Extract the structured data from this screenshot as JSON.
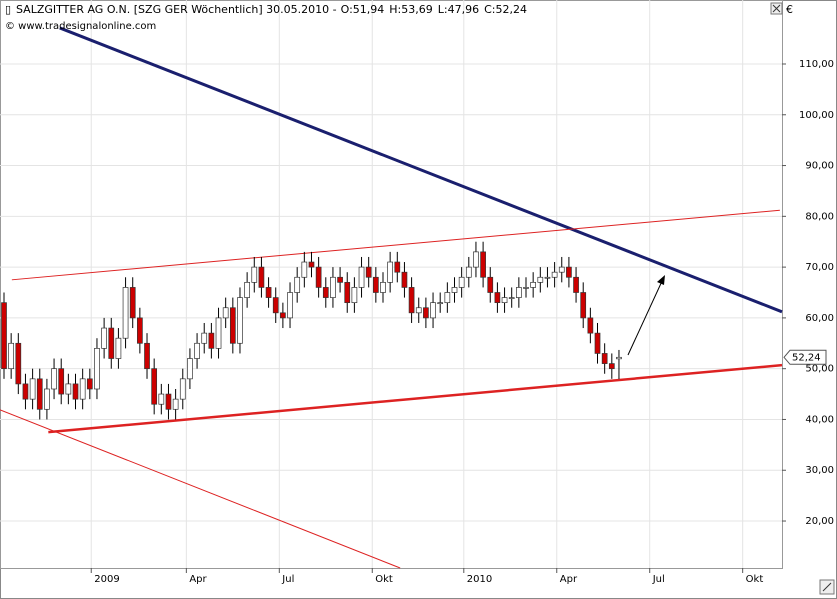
{
  "chart_data": {
    "type": "candlestick",
    "title": "SALZGITTER AG O.N. [SZG GER  Wöchentlich] 30.05.2010 -",
    "quote": [
      {
        "text": "O:51,94",
        "color": "#009900"
      },
      {
        "text": "H:53,69",
        "color": "#0000cc"
      },
      {
        "text": "L:47,96",
        "color": "#0000cc"
      },
      {
        "text": "C:52,24",
        "color": "#009900"
      }
    ],
    "source": "© www.tradesignalonline.com",
    "currency": "€",
    "x": [
      0,
      1,
      2,
      3,
      4,
      5,
      6,
      7,
      8,
      9,
      10,
      11,
      12,
      13,
      14,
      15,
      16,
      17,
      18,
      19,
      20,
      21,
      22,
      23,
      24,
      25,
      26,
      27,
      28,
      29,
      30,
      31,
      32,
      33,
      34,
      35,
      36,
      37,
      38,
      39,
      40,
      41,
      42,
      43,
      44,
      45,
      46,
      47,
      48,
      49,
      50,
      51,
      52,
      53,
      54,
      55,
      56,
      57,
      58,
      59,
      60,
      61,
      62,
      63,
      64,
      65,
      66,
      67,
      68,
      69,
      70,
      71,
      72,
      73,
      74,
      75,
      76,
      77,
      78,
      79,
      80,
      81,
      82,
      83,
      84,
      85,
      86
    ],
    "open": [
      63,
      50,
      55,
      47,
      44,
      48,
      42,
      46,
      50,
      45,
      47,
      44,
      48,
      46,
      54,
      58,
      52,
      56,
      66,
      60,
      55,
      50,
      43,
      45,
      42,
      44,
      48,
      52,
      55,
      57,
      54,
      60,
      62,
      55,
      64,
      67,
      70,
      66,
      64,
      61,
      60,
      65,
      68,
      71,
      70,
      66,
      64,
      68,
      67,
      63,
      66,
      70,
      68,
      65,
      67,
      71,
      69,
      66,
      61,
      62,
      60,
      63,
      63,
      65,
      66,
      68,
      70,
      73,
      68,
      65,
      63,
      64,
      64,
      66,
      66,
      67,
      68,
      68,
      69,
      70,
      68,
      65,
      60,
      57,
      53,
      51,
      51.94
    ],
    "high": [
      65,
      57,
      57,
      49,
      50,
      50,
      48,
      52,
      52,
      49,
      49,
      50,
      50,
      56,
      60,
      60,
      58,
      68,
      68,
      62,
      57,
      52,
      47,
      47,
      46,
      50,
      54,
      57,
      59,
      59,
      62,
      64,
      64,
      66,
      69,
      72,
      72,
      68,
      66,
      63,
      67,
      70,
      73,
      73,
      72,
      68,
      70,
      70,
      69,
      68,
      72,
      72,
      70,
      69,
      73,
      73,
      71,
      68,
      64,
      64,
      65,
      65,
      67,
      68,
      70,
      72,
      75,
      75,
      70,
      67,
      66,
      66,
      68,
      68,
      69,
      70,
      70,
      71,
      72,
      72,
      70,
      67,
      62,
      59,
      55,
      53,
      53.69
    ],
    "low": [
      48,
      48,
      45,
      42,
      42,
      40,
      40,
      44,
      43,
      43,
      42,
      42,
      44,
      44,
      52,
      50,
      50,
      54,
      58,
      53,
      48,
      41,
      41,
      40,
      40,
      42,
      46,
      50,
      53,
      52,
      52,
      58,
      53,
      53,
      62,
      65,
      64,
      62,
      59,
      58,
      58,
      63,
      66,
      68,
      64,
      62,
      62,
      65,
      61,
      61,
      64,
      66,
      63,
      63,
      65,
      67,
      64,
      59,
      59,
      58,
      58,
      61,
      61,
      63,
      64,
      66,
      68,
      66,
      63,
      61,
      61,
      62,
      62,
      64,
      64,
      65,
      66,
      66,
      67,
      66,
      63,
      58,
      55,
      51,
      49,
      48,
      47.96
    ],
    "close": [
      50,
      55,
      47,
      44,
      48,
      42,
      46,
      50,
      45,
      47,
      44,
      48,
      46,
      54,
      58,
      52,
      56,
      66,
      60,
      55,
      50,
      43,
      45,
      42,
      44,
      48,
      52,
      55,
      57,
      54,
      60,
      62,
      55,
      64,
      67,
      70,
      66,
      64,
      61,
      60,
      65,
      68,
      71,
      70,
      66,
      64,
      68,
      67,
      63,
      66,
      70,
      68,
      65,
      67,
      71,
      69,
      66,
      61,
      62,
      60,
      63,
      63,
      65,
      66,
      68,
      70,
      73,
      68,
      65,
      63,
      64,
      64,
      66,
      66,
      67,
      68,
      68,
      69,
      70,
      68,
      65,
      60,
      57,
      53,
      51,
      50,
      52.24
    ],
    "up_color": "#ffffff",
    "down_color": "#cc0000",
    "xlim": [
      -0.56,
      108.8
    ],
    "xticks": [
      {
        "value": 12.2,
        "label": "2009"
      },
      {
        "value": 25.5,
        "label": "Apr"
      },
      {
        "value": 38.5,
        "label": "Jul"
      },
      {
        "value": 51.5,
        "label": "Okt"
      },
      {
        "value": 64.3,
        "label": "2010"
      },
      {
        "value": 77.3,
        "label": "Apr"
      },
      {
        "value": 90.3,
        "label": "Jul"
      },
      {
        "value": 103.3,
        "label": "Okt"
      }
    ],
    "ylim": [
      10.75,
      122.6
    ],
    "yticks": [
      {
        "value": 20,
        "label": "20,00"
      },
      {
        "value": 30,
        "label": "30,00"
      },
      {
        "value": 40,
        "label": "40,00"
      },
      {
        "value": 50,
        "label": "50,00"
      },
      {
        "value": 60,
        "label": "60,00"
      },
      {
        "value": 70,
        "label": "70,00"
      },
      {
        "value": 80,
        "label": "80,00"
      },
      {
        "value": 90,
        "label": "90,00"
      },
      {
        "value": 100,
        "label": "100,00"
      },
      {
        "value": 110,
        "label": "110,00"
      }
    ],
    "grid": true,
    "price_tag": {
      "value": 52.24,
      "label": "52,24"
    },
    "trend_lines": [
      {
        "color": "#1a1f6e",
        "width": 3,
        "points": [
          [
            7.8,
            117.1
          ],
          [
            108.8,
            61.2
          ]
        ]
      },
      {
        "color": "#dd2222",
        "width": 1,
        "points": [
          [
            1.1,
            67.5
          ],
          [
            108.5,
            81.2
          ]
        ]
      },
      {
        "color": "#dd2222",
        "width": 2.5,
        "points": [
          [
            6.2,
            37.5
          ],
          [
            108.8,
            50.7
          ]
        ]
      },
      {
        "color": "#dd2222",
        "width": 1,
        "points": [
          [
            -0.56,
            41.9
          ],
          [
            55.4,
            10.75
          ]
        ]
      }
    ]
  }
}
